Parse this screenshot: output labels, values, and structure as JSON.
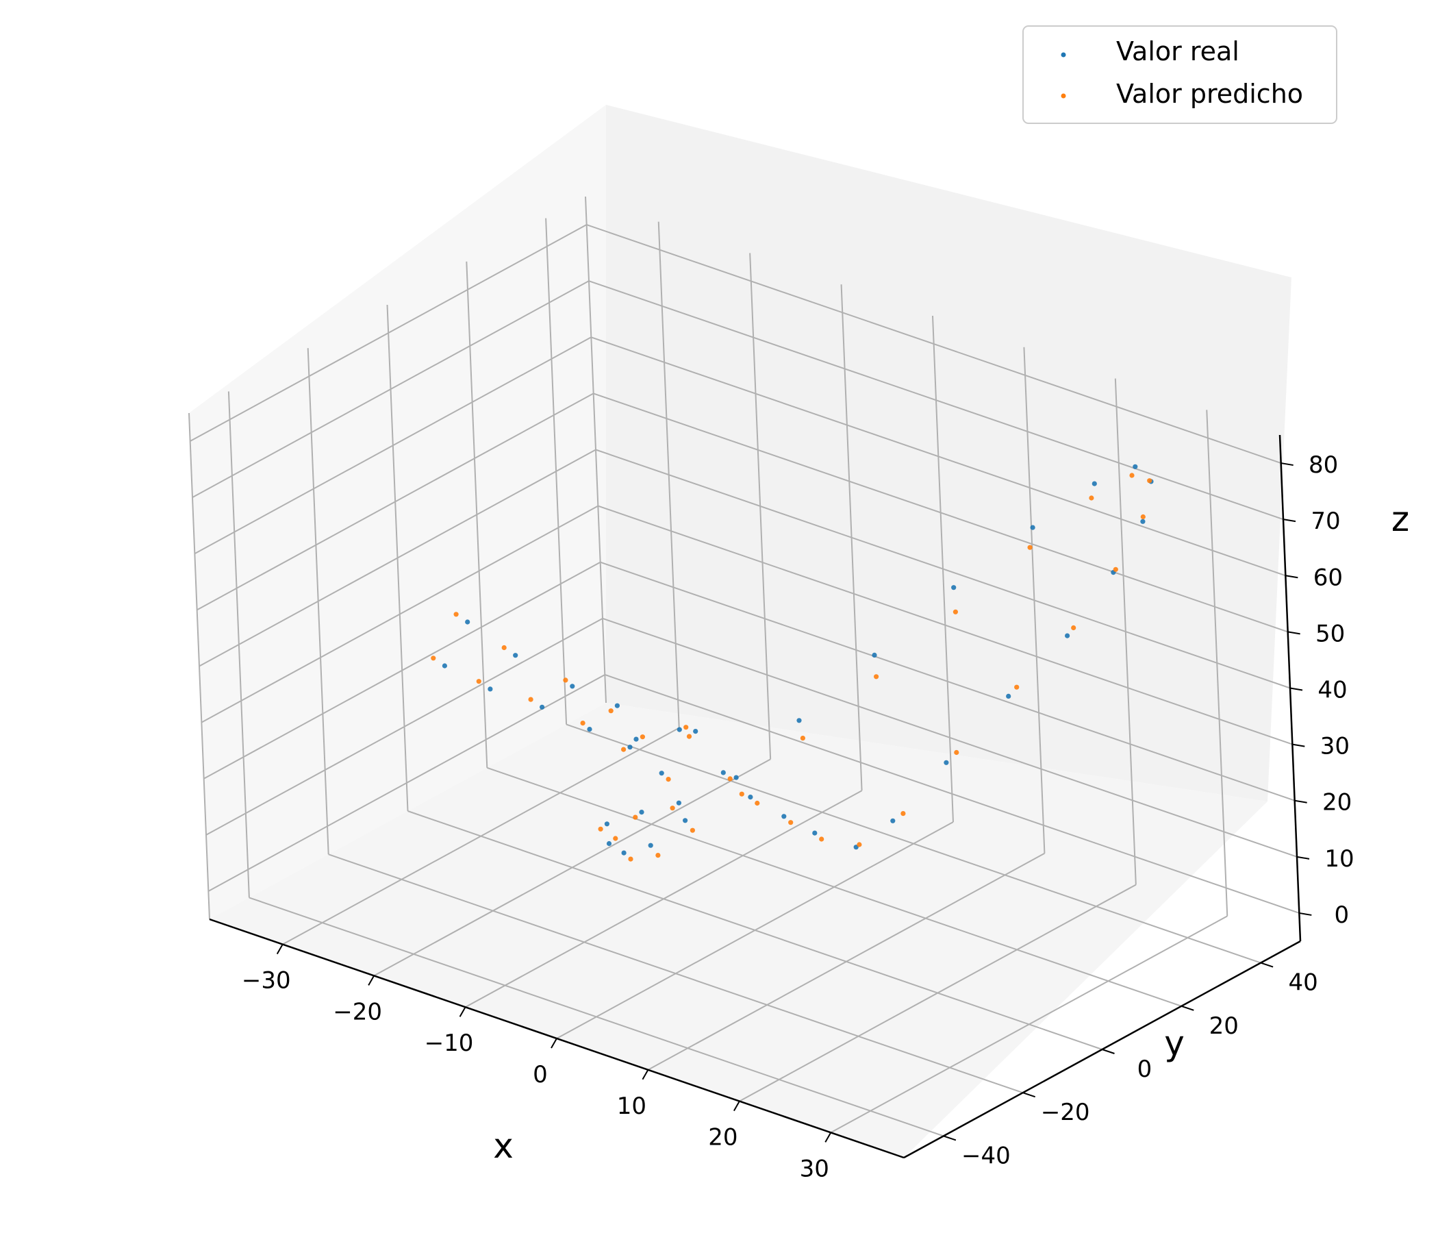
{
  "chart_data": {
    "type": "scatter",
    "projection": "3d",
    "title": "",
    "xlabel": "x",
    "ylabel": "y",
    "zlabel": "z",
    "x_ticks": [
      -30,
      -20,
      -10,
      0,
      10,
      20,
      30
    ],
    "y_ticks": [
      -40,
      -20,
      0,
      20,
      40
    ],
    "z_ticks": [
      0,
      10,
      20,
      30,
      40,
      50,
      60,
      70,
      80
    ],
    "xlim": [
      -38,
      38
    ],
    "ylim": [
      -50,
      50
    ],
    "zlim": [
      -5,
      85
    ],
    "grid": true,
    "legend_position": "top-right",
    "series": [
      {
        "name": "Valor real",
        "color": "#1f77b4",
        "values": [
          [
            3.5,
            18.0,
            4.8
          ],
          [
            5.0,
            24.0,
            8.0
          ],
          [
            8.5,
            30.0,
            18.0
          ],
          [
            13.0,
            36.0,
            30.0
          ],
          [
            18.0,
            40.0,
            42.0
          ],
          [
            22.5,
            42.0,
            55.0
          ],
          [
            26.0,
            42.0,
            66.0
          ],
          [
            28.0,
            40.0,
            75.0
          ],
          [
            29.0,
            34.0,
            80.5
          ],
          [
            28.0,
            26.0,
            80.0
          ],
          [
            25.0,
            17.0,
            74.0
          ],
          [
            20.0,
            8.0,
            64.0
          ],
          [
            14.5,
            0.0,
            52.0
          ],
          [
            9.0,
            -7.0,
            40.0
          ],
          [
            4.0,
            -12.0,
            29.0
          ],
          [
            -0.5,
            -15.0,
            20.0
          ],
          [
            -4.0,
            -16.0,
            14.0
          ],
          [
            -7.0,
            -16.0,
            11.0
          ],
          [
            -9.5,
            -14.0,
            10.5
          ],
          [
            -9.0,
            -9.0,
            26.0
          ],
          [
            -5.0,
            -5.5,
            30.0
          ],
          [
            -8.5,
            -8.5,
            27.5
          ],
          [
            -3.0,
            -6.0,
            31.0
          ],
          [
            -10.0,
            -9.5,
            33.0
          ],
          [
            -6.5,
            -7.0,
            22.0
          ],
          [
            -12.5,
            -11.0,
            28.0
          ],
          [
            -1.0,
            -4.0,
            24.0
          ],
          [
            -14.0,
            -11.5,
            35.0
          ],
          [
            -4.5,
            -7.5,
            18.0
          ],
          [
            -17.0,
            -12.5,
            30.0
          ],
          [
            1.0,
            -2.0,
            20.0
          ],
          [
            -19.5,
            -13.0,
            38.0
          ],
          [
            -8.0,
            -9.0,
            15.0
          ],
          [
            -22.0,
            -14.0,
            31.0
          ],
          [
            3.5,
            0.5,
            17.0
          ],
          [
            -24.0,
            -14.5,
            42.0
          ],
          [
            -11.0,
            -11.0,
            12.0
          ],
          [
            -26.5,
            -15.0,
            33.0
          ],
          [
            5.5,
            3.5,
            14.0
          ]
        ]
      },
      {
        "name": "Valor predicho",
        "color": "#ff7f0e",
        "values": [
          [
            3.2,
            19.5,
            4.5
          ],
          [
            5.5,
            25.5,
            9.0
          ],
          [
            9.0,
            31.5,
            19.5
          ],
          [
            13.5,
            37.0,
            31.5
          ],
          [
            18.5,
            40.5,
            43.5
          ],
          [
            23.0,
            41.5,
            56.0
          ],
          [
            26.5,
            41.0,
            67.5
          ],
          [
            28.5,
            38.5,
            76.0
          ],
          [
            29.5,
            32.0,
            80.0
          ],
          [
            28.5,
            24.0,
            78.5
          ],
          [
            25.5,
            15.0,
            71.5
          ],
          [
            21.0,
            6.0,
            61.0
          ],
          [
            15.5,
            -2.0,
            49.5
          ],
          [
            10.0,
            -8.5,
            38.0
          ],
          [
            5.0,
            -13.0,
            27.0
          ],
          [
            0.5,
            -15.5,
            19.0
          ],
          [
            -3.0,
            -16.5,
            13.0
          ],
          [
            -6.5,
            -15.5,
            10.0
          ],
          [
            -9.0,
            -13.5,
            11.5
          ],
          [
            -9.5,
            -9.5,
            25.5
          ],
          [
            -4.5,
            -5.0,
            30.5
          ],
          [
            -8.0,
            -8.0,
            28.0
          ],
          [
            -3.5,
            -6.5,
            30.0
          ],
          [
            -10.5,
            -10.0,
            32.0
          ],
          [
            -6.0,
            -6.5,
            21.0
          ],
          [
            -13.0,
            -11.5,
            29.0
          ],
          [
            -0.5,
            -3.5,
            23.0
          ],
          [
            -14.5,
            -12.0,
            36.0
          ],
          [
            -5.0,
            -8.0,
            17.0
          ],
          [
            -18.0,
            -13.0,
            31.0
          ],
          [
            1.5,
            -1.5,
            19.0
          ],
          [
            -20.5,
            -13.5,
            39.0
          ],
          [
            -8.5,
            -9.5,
            14.0
          ],
          [
            -23.0,
            -14.5,
            32.0
          ],
          [
            4.0,
            1.0,
            16.0
          ],
          [
            -25.0,
            -15.0,
            43.0
          ],
          [
            -11.5,
            -11.5,
            11.0
          ],
          [
            -27.5,
            -15.5,
            34.0
          ],
          [
            6.0,
            4.0,
            13.0
          ]
        ]
      }
    ]
  }
}
